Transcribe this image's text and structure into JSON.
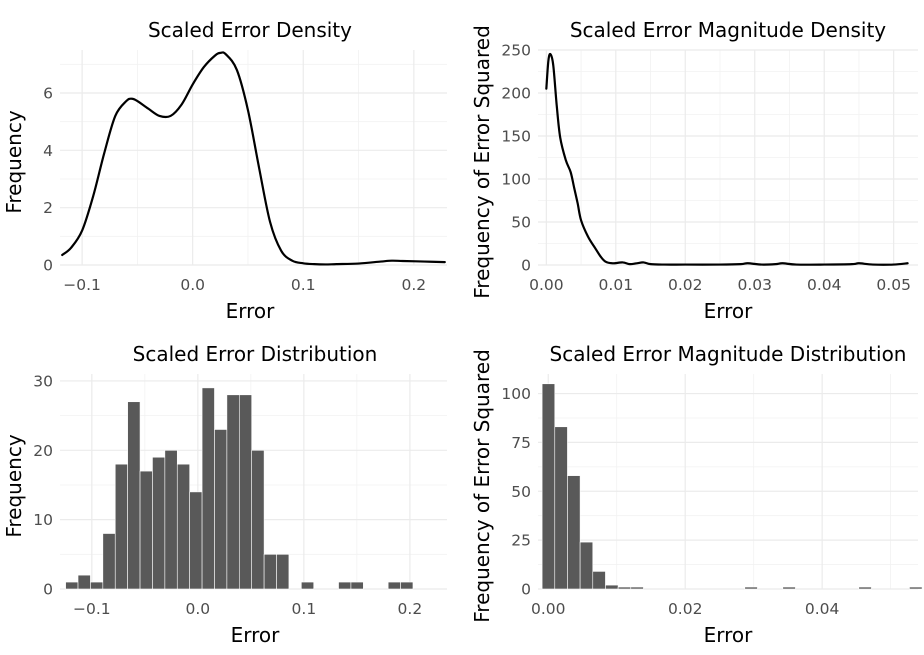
{
  "chart_data": [
    {
      "type": "area",
      "title": "Scaled Error Density",
      "xlabel": "Error",
      "ylabel": "Frequency",
      "xlim": [
        -0.12,
        0.23
      ],
      "ylim": [
        0,
        7.5
      ],
      "x_ticks": [
        -0.1,
        0.0,
        0.1,
        0.2
      ],
      "x_tick_labels": [
        "−0.1",
        "0.0",
        "0.1",
        "0.2"
      ],
      "y_ticks": [
        0,
        2,
        4,
        6
      ],
      "y_tick_labels": [
        "0",
        "2",
        "4",
        "6"
      ],
      "grid": true,
      "x": [
        -0.118,
        -0.11,
        -0.1,
        -0.09,
        -0.08,
        -0.07,
        -0.06,
        -0.055,
        -0.05,
        -0.04,
        -0.03,
        -0.02,
        -0.01,
        0.0,
        0.01,
        0.02,
        0.025,
        0.03,
        0.04,
        0.05,
        0.06,
        0.07,
        0.08,
        0.09,
        0.1,
        0.11,
        0.12,
        0.13,
        0.15,
        0.17,
        0.18,
        0.19,
        0.21,
        0.228
      ],
      "y": [
        0.35,
        0.6,
        1.2,
        2.4,
        3.9,
        5.2,
        5.72,
        5.8,
        5.72,
        5.45,
        5.2,
        5.2,
        5.6,
        6.3,
        6.9,
        7.3,
        7.4,
        7.35,
        6.8,
        5.4,
        3.4,
        1.5,
        0.5,
        0.15,
        0.06,
        0.03,
        0.02,
        0.03,
        0.05,
        0.12,
        0.15,
        0.14,
        0.12,
        0.1
      ]
    },
    {
      "type": "area",
      "title": "Scaled Error Magnitude Density",
      "xlabel": "Error",
      "ylabel": "Frequency of Error Squared",
      "xlim": [
        -0.0012,
        0.0535
      ],
      "ylim": [
        0,
        250
      ],
      "x_ticks": [
        0.0,
        0.01,
        0.02,
        0.03,
        0.04,
        0.05
      ],
      "x_tick_labels": [
        "0.00",
        "0.01",
        "0.02",
        "0.03",
        "0.04",
        "0.05"
      ],
      "y_ticks": [
        0,
        50,
        100,
        150,
        200,
        250
      ],
      "y_tick_labels": [
        "0",
        "50",
        "100",
        "150",
        "200",
        "250"
      ],
      "grid": true,
      "x": [
        0.0,
        0.0003,
        0.0006,
        0.001,
        0.0015,
        0.002,
        0.0028,
        0.0035,
        0.004,
        0.0045,
        0.005,
        0.006,
        0.007,
        0.0078,
        0.0085,
        0.0095,
        0.011,
        0.012,
        0.013,
        0.014,
        0.015,
        0.017,
        0.02,
        0.025,
        0.028,
        0.029,
        0.031,
        0.033,
        0.034,
        0.036,
        0.04,
        0.044,
        0.045,
        0.047,
        0.05,
        0.052
      ],
      "y": [
        205,
        238,
        245,
        232,
        185,
        148,
        122,
        108,
        90,
        72,
        52,
        33,
        20,
        10,
        4,
        2,
        3,
        1,
        2,
        3,
        1,
        0.5,
        0.5,
        0.5,
        1,
        2,
        0.5,
        1,
        2,
        0.5,
        0.5,
        1,
        2,
        0.5,
        0.5,
        2
      ]
    },
    {
      "type": "bar",
      "title": "Scaled Error Distribution",
      "xlabel": "Error",
      "ylabel": "Frequency",
      "xlim": [
        -0.13,
        0.235
      ],
      "ylim": [
        0,
        31
      ],
      "x_ticks": [
        -0.1,
        0.0,
        0.1,
        0.2
      ],
      "x_tick_labels": [
        "−0.1",
        "0.0",
        "0.1",
        "0.2"
      ],
      "y_ticks": [
        0,
        10,
        20,
        30
      ],
      "y_tick_labels": [
        "0",
        "10",
        "20",
        "30"
      ],
      "grid": true,
      "bin_start": -0.1247,
      "bin_width": 0.0117,
      "counts": [
        1,
        2,
        1,
        8,
        18,
        27,
        17,
        19,
        20,
        18,
        14,
        29,
        23,
        28,
        28,
        20,
        5,
        5,
        0,
        1,
        0,
        0,
        1,
        1,
        0,
        0,
        1,
        1
      ]
    },
    {
      "type": "bar",
      "title": "Scaled Error Magnitude Distribution",
      "xlabel": "Error",
      "ylabel": "Frequency of Error Squared",
      "xlim": [
        -0.0015,
        0.054
      ],
      "ylim": [
        0,
        110
      ],
      "x_ticks": [
        0.0,
        0.02,
        0.04
      ],
      "x_tick_labels": [
        "0.00",
        "0.02",
        "0.04"
      ],
      "y_ticks": [
        0,
        25,
        50,
        75,
        100
      ],
      "y_tick_labels": [
        "0",
        "25",
        "50",
        "75",
        "100"
      ],
      "grid": true,
      "bin_start": -0.0009,
      "bin_width": 0.00185,
      "counts": [
        105,
        83,
        58,
        24,
        9,
        2,
        1,
        1,
        0,
        0,
        0,
        0,
        0,
        0,
        0,
        0,
        1,
        0,
        0,
        1,
        0,
        0,
        0,
        0,
        0,
        1,
        0,
        0,
        0,
        1
      ]
    }
  ]
}
